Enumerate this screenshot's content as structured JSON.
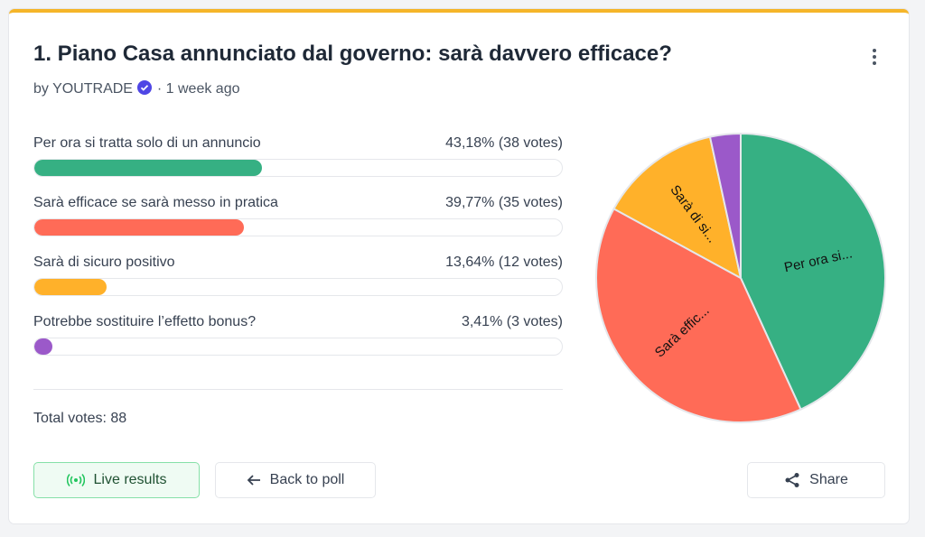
{
  "header": {
    "title": "1. Piano Casa annunciato dal governo: sarà davvero efficace?",
    "by": "by",
    "author": "YOUTRADE",
    "time": "· 1 week ago"
  },
  "poll": {
    "options": [
      {
        "label": "Per ora si tratta solo di un annuncio",
        "percent": 43.18,
        "votes": 38,
        "value_label": "43,18% (38 votes)",
        "color": "#36b083",
        "pie_label": "Per ora si..."
      },
      {
        "label": "Sarà efficace se sarà messo in pratica",
        "percent": 39.77,
        "votes": 35,
        "value_label": "39,77% (35 votes)",
        "color": "#ff6b57",
        "pie_label": "Sarà effic..."
      },
      {
        "label": "Sarà di sicuro positivo",
        "percent": 13.64,
        "votes": 12,
        "value_label": "13,64% (12 votes)",
        "color": "#ffb12a",
        "pie_label": "Sarà di si..."
      },
      {
        "label": "Potrebbe sostituire l’effetto bonus?",
        "percent": 3.41,
        "votes": 3,
        "value_label": "3,41% (3 votes)",
        "color": "#9b59c9",
        "pie_label": null
      }
    ],
    "total_label": "Total votes:",
    "total": 88
  },
  "buttons": {
    "live": "Live results",
    "back": "Back to poll",
    "share": "Share"
  }
}
